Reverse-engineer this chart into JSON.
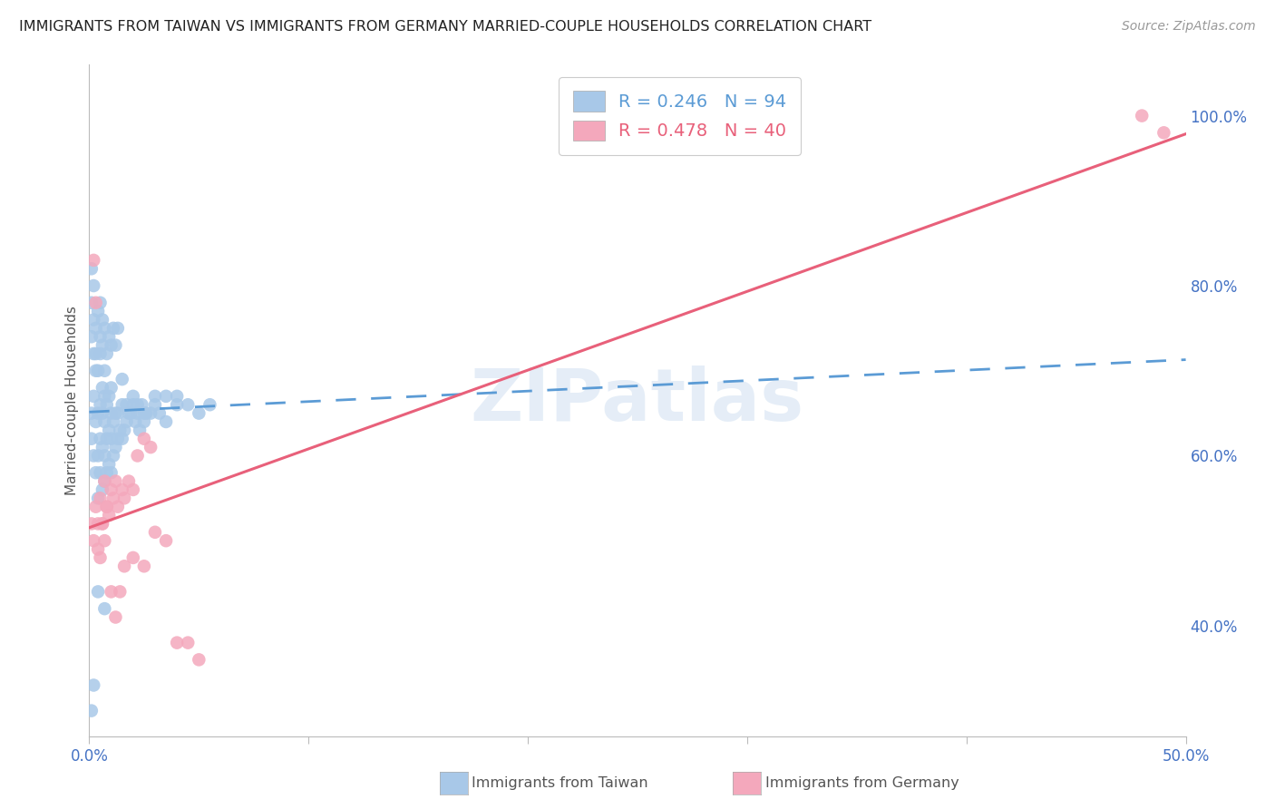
{
  "title": "IMMIGRANTS FROM TAIWAN VS IMMIGRANTS FROM GERMANY MARRIED-COUPLE HOUSEHOLDS CORRELATION CHART",
  "source": "Source: ZipAtlas.com",
  "ylabel": "Married-couple Households",
  "xmin": 0.0,
  "xmax": 0.5,
  "ymin": 0.27,
  "ymax": 1.06,
  "taiwan_color": "#a8c8e8",
  "germany_color": "#f4a8bc",
  "taiwan_R": 0.246,
  "taiwan_N": 94,
  "germany_R": 0.478,
  "germany_N": 40,
  "taiwan_line_color": "#5b9bd5",
  "germany_line_color": "#e8607a",
  "watermark": "ZIPatlas",
  "background_color": "#ffffff",
  "grid_color": "#e0e0e0",
  "taiwan_x": [
    0.001,
    0.001,
    0.002,
    0.002,
    0.002,
    0.003,
    0.003,
    0.003,
    0.004,
    0.004,
    0.004,
    0.004,
    0.005,
    0.005,
    0.005,
    0.005,
    0.006,
    0.006,
    0.006,
    0.006,
    0.007,
    0.007,
    0.007,
    0.007,
    0.007,
    0.008,
    0.008,
    0.008,
    0.009,
    0.009,
    0.009,
    0.01,
    0.01,
    0.01,
    0.01,
    0.011,
    0.011,
    0.012,
    0.012,
    0.013,
    0.013,
    0.014,
    0.015,
    0.015,
    0.016,
    0.017,
    0.018,
    0.019,
    0.02,
    0.021,
    0.022,
    0.023,
    0.024,
    0.025,
    0.026,
    0.028,
    0.03,
    0.032,
    0.035,
    0.04,
    0.001,
    0.001,
    0.001,
    0.002,
    0.002,
    0.003,
    0.003,
    0.004,
    0.005,
    0.005,
    0.006,
    0.006,
    0.007,
    0.008,
    0.009,
    0.01,
    0.011,
    0.012,
    0.013,
    0.015,
    0.017,
    0.02,
    0.022,
    0.025,
    0.03,
    0.035,
    0.04,
    0.045,
    0.05,
    0.055,
    0.001,
    0.002,
    0.004,
    0.007
  ],
  "taiwan_y": [
    0.62,
    0.65,
    0.6,
    0.67,
    0.72,
    0.58,
    0.64,
    0.7,
    0.55,
    0.6,
    0.65,
    0.7,
    0.58,
    0.62,
    0.66,
    0.72,
    0.56,
    0.61,
    0.65,
    0.68,
    0.57,
    0.6,
    0.64,
    0.67,
    0.7,
    0.58,
    0.62,
    0.66,
    0.59,
    0.63,
    0.67,
    0.58,
    0.62,
    0.65,
    0.68,
    0.6,
    0.64,
    0.61,
    0.65,
    0.62,
    0.65,
    0.63,
    0.62,
    0.66,
    0.63,
    0.64,
    0.65,
    0.65,
    0.66,
    0.64,
    0.65,
    0.63,
    0.66,
    0.64,
    0.65,
    0.65,
    0.67,
    0.65,
    0.64,
    0.66,
    0.82,
    0.78,
    0.74,
    0.8,
    0.76,
    0.72,
    0.75,
    0.77,
    0.74,
    0.78,
    0.76,
    0.73,
    0.75,
    0.72,
    0.74,
    0.73,
    0.75,
    0.73,
    0.75,
    0.69,
    0.66,
    0.67,
    0.66,
    0.65,
    0.66,
    0.67,
    0.67,
    0.66,
    0.65,
    0.66,
    0.3,
    0.33,
    0.44,
    0.42
  ],
  "germany_x": [
    0.001,
    0.002,
    0.003,
    0.004,
    0.005,
    0.006,
    0.007,
    0.008,
    0.009,
    0.01,
    0.011,
    0.012,
    0.013,
    0.015,
    0.016,
    0.018,
    0.02,
    0.022,
    0.025,
    0.028,
    0.002,
    0.003,
    0.004,
    0.005,
    0.006,
    0.007,
    0.008,
    0.01,
    0.012,
    0.014,
    0.016,
    0.02,
    0.025,
    0.03,
    0.035,
    0.04,
    0.045,
    0.05,
    0.48,
    0.49
  ],
  "germany_y": [
    0.52,
    0.5,
    0.54,
    0.49,
    0.55,
    0.52,
    0.57,
    0.54,
    0.53,
    0.56,
    0.55,
    0.57,
    0.54,
    0.56,
    0.55,
    0.57,
    0.56,
    0.6,
    0.62,
    0.61,
    0.83,
    0.78,
    0.52,
    0.48,
    0.52,
    0.5,
    0.54,
    0.44,
    0.41,
    0.44,
    0.47,
    0.48,
    0.47,
    0.51,
    0.5,
    0.38,
    0.38,
    0.36,
    1.0,
    0.98
  ]
}
